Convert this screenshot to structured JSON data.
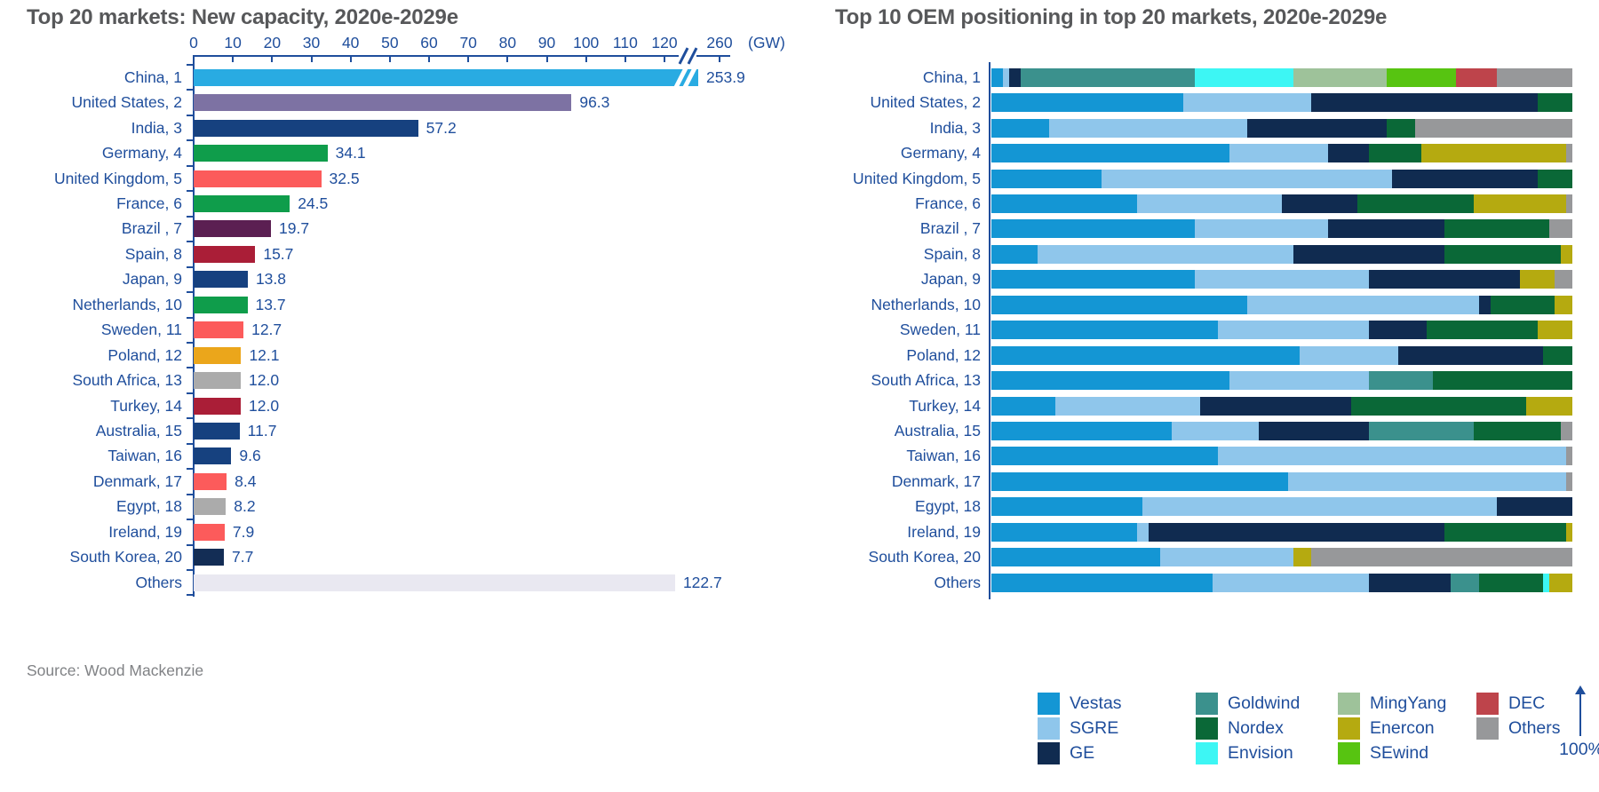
{
  "source_note": "Source: Wood Mackenzie",
  "left_chart_title": "Top 20 markets: New capacity, 2020e-2029e",
  "right_chart_title": "Top 10 OEM positioning in top 20 markets, 2020e-2029e",
  "axis_unit_label": "(GW)",
  "axis_break_tick_label": "260",
  "right_axis_max_label": "100%",
  "text_colors": {
    "title": "#57585A",
    "axis_blue": "#1F4E9C",
    "source_gray": "#808285"
  },
  "chart_data": [
    {
      "type": "bar",
      "title": "Top 20 markets: New capacity, 2020e-2029e",
      "orientation": "horizontal",
      "xlabel": "(GW)",
      "axis_ticks": [
        0,
        10,
        20,
        30,
        40,
        50,
        60,
        70,
        80,
        90,
        100,
        110,
        120
      ],
      "axis_break_after": 120,
      "axis_break_tick": 260,
      "categories": [
        "China, 1",
        "United States, 2",
        "India, 3",
        "Germany, 4",
        "United Kingdom, 5",
        "France, 6",
        "Brazil , 7",
        "Spain, 8",
        "Japan, 9",
        "Netherlands, 10",
        "Sweden, 11",
        "Poland, 12",
        "South Africa, 13",
        "Turkey, 14",
        "Australia, 15",
        "Taiwan, 16",
        "Denmark, 17",
        "Egypt, 18",
        "Ireland, 19",
        "South Korea, 20",
        "Others"
      ],
      "values": [
        253.9,
        96.3,
        57.2,
        34.1,
        32.5,
        24.5,
        19.7,
        15.7,
        13.8,
        13.7,
        12.7,
        12.1,
        12.0,
        12.0,
        11.7,
        9.6,
        8.4,
        8.2,
        7.9,
        7.7,
        122.7
      ],
      "bar_colors": [
        "#29ABE2",
        "#7D72A3",
        "#16417F",
        "#0F9D4B",
        "#FC5B5B",
        "#0F9D4B",
        "#5B1F52",
        "#AA1E37",
        "#16417F",
        "#0F9D4B",
        "#FC5B5B",
        "#EBA61B",
        "#ABABAB",
        "#AA1E37",
        "#16417F",
        "#16417F",
        "#FC5B5B",
        "#ABABAB",
        "#FC5B5B",
        "#132D55",
        "#E9E8F1"
      ],
      "broken_bar_category": "China, 1"
    },
    {
      "type": "stacked-bar-100",
      "title": "Top 10 OEM positioning in top 20 markets, 2020e-2029e",
      "orientation": "horizontal",
      "axis_max_label": "100%",
      "legend_order": [
        "Vestas",
        "SGRE",
        "GE",
        "Goldwind",
        "Nordex",
        "Envision",
        "MingYang",
        "Enercon",
        "SEwind",
        "DEC",
        "Others"
      ],
      "legend_columns": [
        [
          "Vestas",
          "SGRE",
          "GE"
        ],
        [
          "Goldwind",
          "Nordex",
          "Envision"
        ],
        [
          "MingYang",
          "Enercon",
          "SEwind"
        ],
        [
          "DEC",
          "Others"
        ]
      ],
      "series_colors": {
        "Vestas": "#1496D4",
        "SGRE": "#8FC6EB",
        "GE": "#102B50",
        "Goldwind": "#3B918D",
        "Nordex": "#0A6837",
        "Envision": "#3DF6F4",
        "MingYang": "#9EC29A",
        "Enercon": "#B5AA10",
        "SEwind": "#57C411",
        "DEC": "#BE444B",
        "Others": "#97989A"
      },
      "rows": [
        {
          "label": "China, 1",
          "segments": [
            [
              "Vestas",
              2
            ],
            [
              "SGRE",
              1
            ],
            [
              "GE",
              2
            ],
            [
              "Goldwind",
              30
            ],
            [
              "Envision",
              17
            ],
            [
              "MingYang",
              16
            ],
            [
              "SEwind",
              12
            ],
            [
              "DEC",
              7
            ],
            [
              "Others",
              13
            ]
          ]
        },
        {
          "label": "United States, 2",
          "segments": [
            [
              "Vestas",
              33
            ],
            [
              "SGRE",
              22
            ],
            [
              "GE",
              39
            ],
            [
              "Nordex",
              6
            ]
          ]
        },
        {
          "label": "India, 3",
          "segments": [
            [
              "Vestas",
              10
            ],
            [
              "SGRE",
              34
            ],
            [
              "GE",
              24
            ],
            [
              "Nordex",
              5
            ],
            [
              "Others",
              27
            ]
          ]
        },
        {
          "label": "Germany, 4",
          "segments": [
            [
              "Vestas",
              41
            ],
            [
              "SGRE",
              17
            ],
            [
              "GE",
              7
            ],
            [
              "Nordex",
              9
            ],
            [
              "Enercon",
              25
            ],
            [
              "Others",
              1
            ]
          ]
        },
        {
          "label": "United Kingdom, 5",
          "segments": [
            [
              "Vestas",
              19
            ],
            [
              "SGRE",
              50
            ],
            [
              "GE",
              25
            ],
            [
              "Nordex",
              6
            ]
          ]
        },
        {
          "label": "France, 6",
          "segments": [
            [
              "Vestas",
              25
            ],
            [
              "SGRE",
              25
            ],
            [
              "GE",
              13
            ],
            [
              "Nordex",
              20
            ],
            [
              "Enercon",
              16
            ],
            [
              "Others",
              1
            ]
          ]
        },
        {
          "label": "Brazil , 7",
          "segments": [
            [
              "Vestas",
              35
            ],
            [
              "SGRE",
              23
            ],
            [
              "GE",
              20
            ],
            [
              "Nordex",
              18
            ],
            [
              "Others",
              4
            ]
          ]
        },
        {
          "label": "Spain, 8",
          "segments": [
            [
              "Vestas",
              8
            ],
            [
              "SGRE",
              44
            ],
            [
              "GE",
              26
            ],
            [
              "Nordex",
              20
            ],
            [
              "Enercon",
              2
            ]
          ]
        },
        {
          "label": "Japan, 9",
          "segments": [
            [
              "Vestas",
              35
            ],
            [
              "SGRE",
              30
            ],
            [
              "GE",
              26
            ],
            [
              "Enercon",
              6
            ],
            [
              "Others",
              3
            ]
          ]
        },
        {
          "label": "Netherlands, 10",
          "segments": [
            [
              "Vestas",
              44
            ],
            [
              "SGRE",
              40
            ],
            [
              "GE",
              2
            ],
            [
              "Nordex",
              11
            ],
            [
              "Enercon",
              3
            ]
          ]
        },
        {
          "label": "Sweden, 11",
          "segments": [
            [
              "Vestas",
              39
            ],
            [
              "SGRE",
              26
            ],
            [
              "GE",
              10
            ],
            [
              "Nordex",
              19
            ],
            [
              "Enercon",
              6
            ]
          ]
        },
        {
          "label": "Poland, 12",
          "segments": [
            [
              "Vestas",
              53
            ],
            [
              "SGRE",
              17
            ],
            [
              "GE",
              25
            ],
            [
              "Nordex",
              5
            ]
          ]
        },
        {
          "label": "South Africa, 13",
          "segments": [
            [
              "Vestas",
              41
            ],
            [
              "SGRE",
              24
            ],
            [
              "Goldwind",
              11
            ],
            [
              "Nordex",
              24
            ]
          ]
        },
        {
          "label": "Turkey, 14",
          "segments": [
            [
              "Vestas",
              11
            ],
            [
              "SGRE",
              25
            ],
            [
              "GE",
              26
            ],
            [
              "Nordex",
              30
            ],
            [
              "Enercon",
              8
            ]
          ]
        },
        {
          "label": "Australia, 15",
          "segments": [
            [
              "Vestas",
              31
            ],
            [
              "SGRE",
              15
            ],
            [
              "GE",
              19
            ],
            [
              "Goldwind",
              18
            ],
            [
              "Nordex",
              15
            ],
            [
              "Others",
              2
            ]
          ]
        },
        {
          "label": "Taiwan, 16",
          "segments": [
            [
              "Vestas",
              39
            ],
            [
              "SGRE",
              60
            ],
            [
              "Others",
              1
            ]
          ]
        },
        {
          "label": "Denmark, 17",
          "segments": [
            [
              "Vestas",
              51
            ],
            [
              "SGRE",
              48
            ],
            [
              "Others",
              1
            ]
          ]
        },
        {
          "label": "Egypt, 18",
          "segments": [
            [
              "Vestas",
              26
            ],
            [
              "SGRE",
              61
            ],
            [
              "GE",
              13
            ]
          ]
        },
        {
          "label": "Ireland, 19",
          "segments": [
            [
              "Vestas",
              25
            ],
            [
              "SGRE",
              2
            ],
            [
              "GE",
              51
            ],
            [
              "Nordex",
              21
            ],
            [
              "Enercon",
              1
            ]
          ]
        },
        {
          "label": "South Korea, 20",
          "segments": [
            [
              "Vestas",
              29
            ],
            [
              "SGRE",
              23
            ],
            [
              "Enercon",
              3
            ],
            [
              "Others",
              45
            ]
          ]
        },
        {
          "label": "Others",
          "segments": [
            [
              "Vestas",
              38
            ],
            [
              "SGRE",
              27
            ],
            [
              "GE",
              14
            ],
            [
              "Goldwind",
              5
            ],
            [
              "Nordex",
              11
            ],
            [
              "Envision",
              1
            ],
            [
              "Enercon",
              4
            ]
          ]
        }
      ]
    }
  ]
}
